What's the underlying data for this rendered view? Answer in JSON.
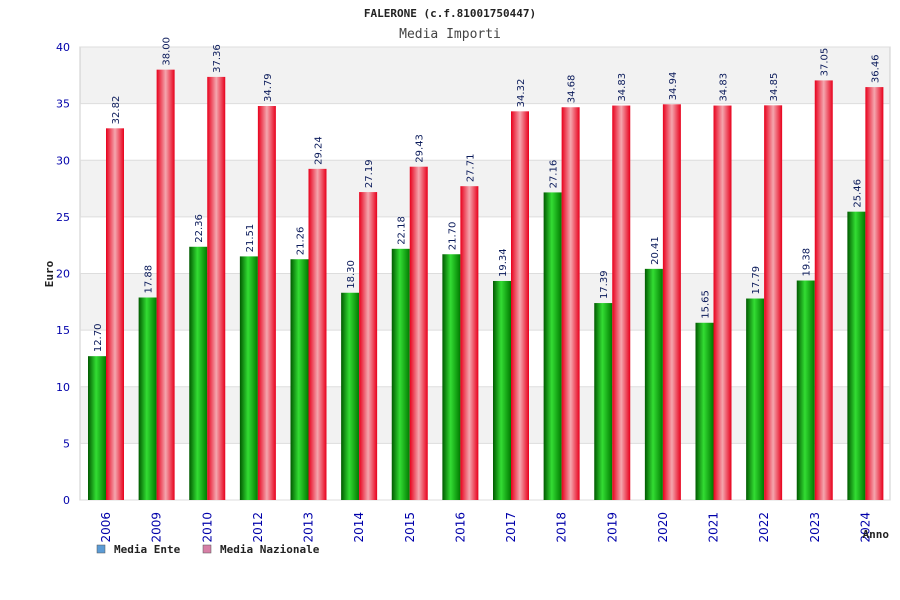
{
  "chart_data": {
    "type": "bar",
    "title": "FALERONE (c.f.81001750447)",
    "subtitle": "Media Importi",
    "xlabel": "Anno",
    "ylabel": "Euro",
    "ylim": [
      0,
      40
    ],
    "yticks": [
      0,
      5,
      10,
      15,
      20,
      25,
      30,
      35,
      40
    ],
    "categories": [
      "2006",
      "2009",
      "2010",
      "2012",
      "2013",
      "2014",
      "2015",
      "2016",
      "2017",
      "2018",
      "2019",
      "2020",
      "2021",
      "2022",
      "2023",
      "2024"
    ],
    "series": [
      {
        "name": "Media Ente",
        "color": "#00aa00",
        "legend_color": "#5b9bd5",
        "values": [
          12.7,
          17.88,
          22.36,
          21.51,
          21.26,
          18.3,
          22.18,
          21.7,
          19.34,
          27.16,
          17.39,
          20.41,
          15.65,
          17.79,
          19.38,
          25.46
        ],
        "labels": [
          "12.70",
          "17.88",
          "22.36",
          "21.51",
          "21.26",
          "18.30",
          "22.18",
          "21.70",
          "19.34",
          "27.16",
          "17.39",
          "20.41",
          "15.65",
          "17.79",
          "19.38",
          "25.46"
        ]
      },
      {
        "name": "Media Nazionale",
        "color": "#e8001c",
        "legend_color": "#d77fa6",
        "values": [
          32.82,
          38.0,
          37.36,
          34.79,
          29.24,
          27.19,
          29.43,
          27.71,
          34.32,
          34.68,
          34.83,
          34.94,
          34.83,
          34.85,
          37.05,
          36.46
        ],
        "labels": [
          "32.82",
          "38.00",
          "37.36",
          "34.79",
          "29.24",
          "27.19",
          "29.43",
          "27.71",
          "34.32",
          "34.68",
          "34.83",
          "34.94",
          "34.83",
          "34.85",
          "37.05",
          "36.46"
        ]
      }
    ],
    "grid": true,
    "legend_position": "bottom-left"
  }
}
